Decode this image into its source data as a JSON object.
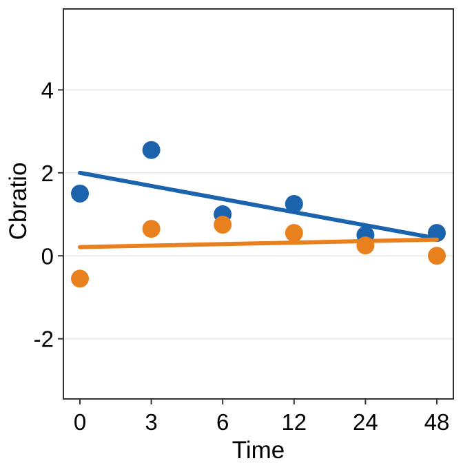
{
  "figure": {
    "background_color": "#ffffff"
  },
  "chart_data": {
    "type": "scatter",
    "title": "",
    "xlabel": "Time",
    "ylabel": "Cbratio",
    "categories": [
      "0",
      "3",
      "6",
      "12",
      "24",
      "48"
    ],
    "series": [
      {
        "name": "blue",
        "color": "#1c63ae",
        "points": [
          1.5,
          2.55,
          1.0,
          1.25,
          0.5,
          0.55
        ],
        "trend": {
          "start": 2.0,
          "end": 0.42
        }
      },
      {
        "name": "orange",
        "color": "#e8801e",
        "points": [
          -0.55,
          0.65,
          0.75,
          0.55,
          0.25,
          0.0
        ],
        "trend": {
          "start": 0.21,
          "end": 0.39
        }
      }
    ],
    "yticks": [
      "-2",
      "0",
      "2",
      "4"
    ],
    "ytick_values": [
      -2,
      0,
      2,
      4
    ],
    "ylim": [
      -3.45,
      5.95
    ],
    "grid": "horizontal-major-only",
    "legend": "none",
    "panel_border": true
  },
  "style": {
    "grid_color": "#ebebeb",
    "border_color": "#333333",
    "tick_color": "#333333",
    "text_color": "#000000",
    "point_radius": 13,
    "trend_stroke_width": 6,
    "grid_stroke_width": 2,
    "border_stroke_width": 2,
    "tick_length": 8
  }
}
